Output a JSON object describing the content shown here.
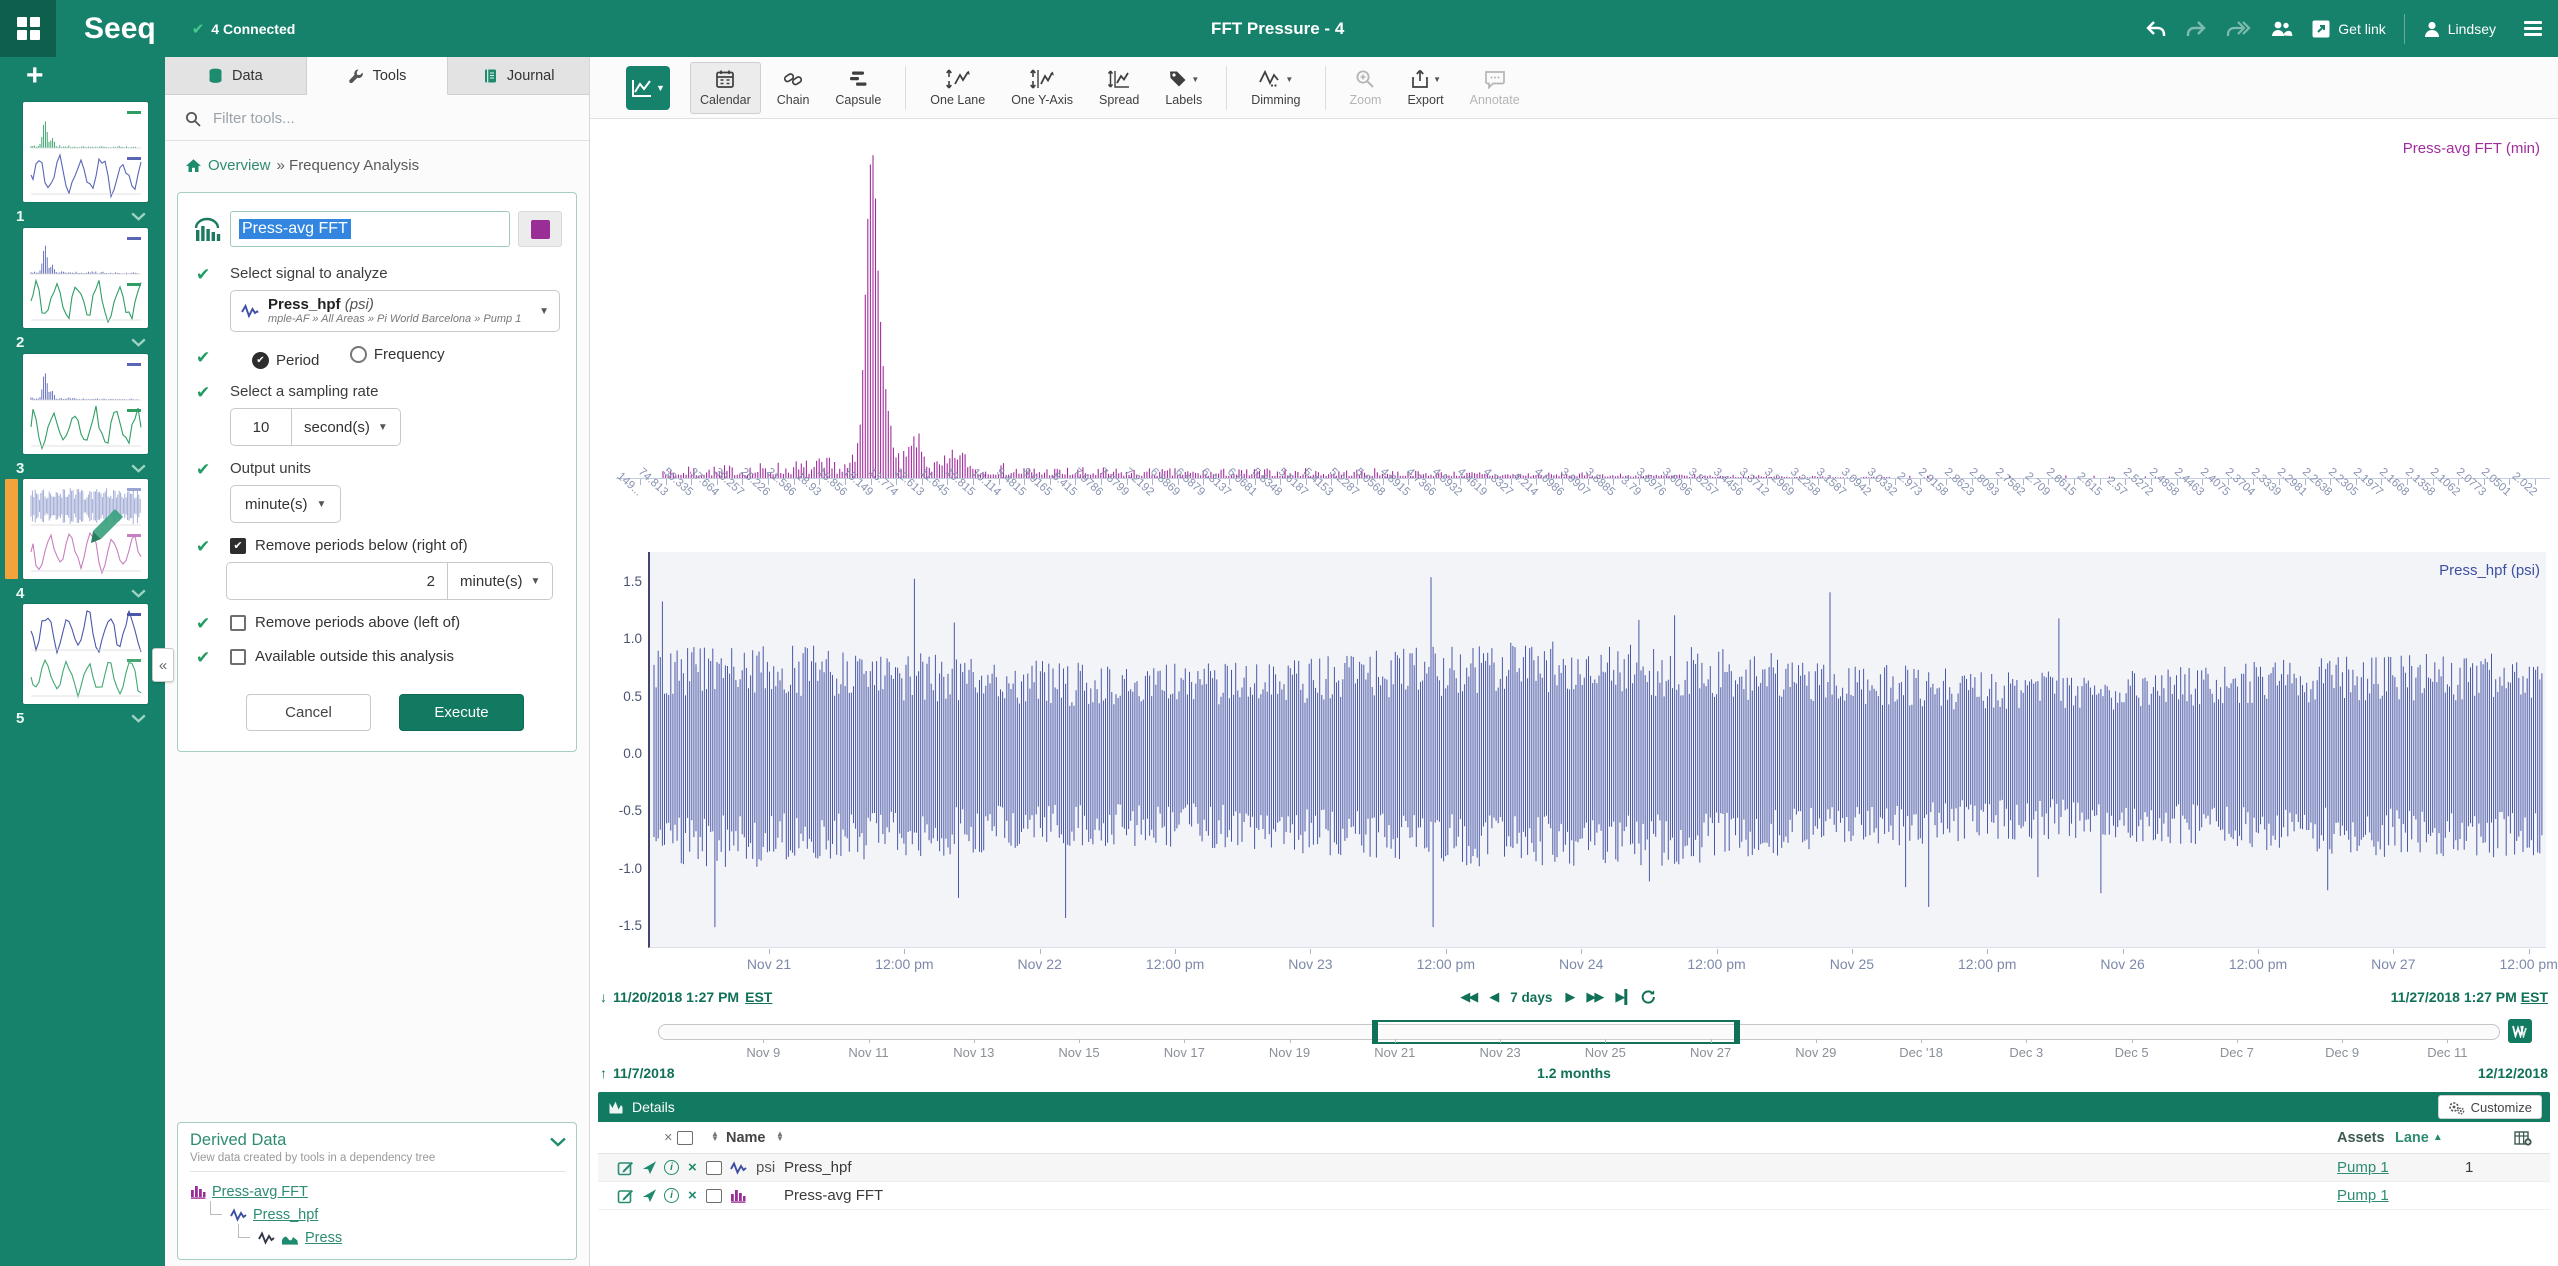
{
  "topbar": {
    "logo": "Seeq",
    "connected": "4 Connected",
    "title": "FFT Pressure - 4",
    "get_link": "Get link",
    "user": "Lindsey"
  },
  "sidebar": {
    "add_label": "+",
    "worksheets": [
      {
        "label": "1",
        "active": false,
        "edited": false,
        "top": {
          "kind": "fft",
          "color": "#2f9e63"
        },
        "bottom": {
          "kind": "wave",
          "color": "#5a66b5"
        }
      },
      {
        "label": "2",
        "active": false,
        "edited": false,
        "top": {
          "kind": "fft",
          "color": "#5a66b5"
        },
        "bottom": {
          "kind": "wave",
          "color": "#2f9e63"
        }
      },
      {
        "label": "3",
        "active": false,
        "edited": false,
        "top": {
          "kind": "fft",
          "color": "#5a66b5"
        },
        "bottom": {
          "kind": "wave",
          "color": "#2f9e63"
        }
      },
      {
        "label": "4",
        "active": true,
        "edited": true,
        "top": {
          "kind": "band",
          "color": "#9aa5d2"
        },
        "bottom": {
          "kind": "wave",
          "color": "#c77fc0"
        }
      },
      {
        "label": "5",
        "active": false,
        "edited": false,
        "top": {
          "kind": "wave",
          "color": "#4a57a9"
        },
        "bottom": {
          "kind": "wave",
          "color": "#43a873"
        }
      }
    ]
  },
  "tools_panel": {
    "tabs": [
      {
        "label": "Data"
      },
      {
        "label": "Tools",
        "active": true
      },
      {
        "label": "Journal"
      }
    ],
    "filter_placeholder": "Filter tools...",
    "breadcrumb": {
      "root": "Overview",
      "rest": "» Frequency Analysis"
    },
    "form": {
      "name_value": "Press-avg FFT",
      "swatch_color": "#9B2D96",
      "signal_label": "Select signal to analyze",
      "signal_name": "Press_hpf",
      "signal_unit": "(psi)",
      "signal_path": "mple-AF » All Areas » Pi World Barcelona » Pump 1",
      "radio_period": "Period",
      "radio_frequency": "Frequency",
      "period_selected": true,
      "sampling_label": "Select a sampling rate",
      "sampling_value": "10",
      "sampling_unit": "second(s)",
      "output_label": "Output units",
      "output_unit": "minute(s)",
      "below_label": "Remove periods below (right of)",
      "below_checked": true,
      "below_value": "2",
      "below_unit": "minute(s)",
      "above_label": "Remove periods above (left of)",
      "above_checked": false,
      "outside_label": "Available outside this analysis",
      "outside_checked": false,
      "cancel_label": "Cancel",
      "execute_label": "Execute"
    },
    "derived": {
      "title": "Derived Data",
      "subtitle": "View data created by tools in a dependency tree",
      "tree": [
        "Press-avg FFT",
        "Press_hpf",
        "Press"
      ]
    }
  },
  "toolbar": {
    "buttons": [
      {
        "label": "Calendar",
        "state": "active"
      },
      {
        "label": "Chain",
        "state": "normal"
      },
      {
        "label": "Capsule",
        "state": "normal"
      },
      {
        "label": "One Lane",
        "state": "normal"
      },
      {
        "label": "One Y-Axis",
        "state": "normal"
      },
      {
        "label": "Spread",
        "state": "normal"
      },
      {
        "label": "Labels",
        "state": "normal"
      },
      {
        "label": "Dimming",
        "state": "normal"
      },
      {
        "label": "Zoom",
        "state": "disabled"
      },
      {
        "label": "Export",
        "state": "normal"
      },
      {
        "label": "Annotate",
        "state": "disabled"
      }
    ]
  },
  "chart_data": [
    {
      "type": "bar",
      "name": "Press-avg FFT",
      "lane_label": "Press-avg FFT (min)",
      "color": "#A12D9D",
      "x_axis": "period in minutes, harmonic ticks T/k with T ≈ 151.5 min",
      "tick_labels": [
        "149...",
        "74.813",
        "50.335",
        "37.664",
        "30.257",
        "25.226",
        "21.586",
        "18.93",
        "16.856",
        "15.149",
        "13.774",
        "12.613",
        "11.645",
        "10.815",
        "10.114",
        "9.4815",
        "8.9165",
        "8.415",
        "7.9786",
        "7.5799",
        "7.2192",
        "6.8869",
        "6.5879",
        "6.3137",
        "6.0681",
        "5.8348",
        "5.6187",
        "5.4153",
        "5.2287",
        "5.0568",
        "4.8915",
        "4.7366",
        "4.5932",
        "4.4619",
        "4.3327",
        "4.214",
        "4.0986",
        "3.9907",
        "3.8885",
        "3.79",
        "3.6976",
        "3.6096",
        "3.5257",
        "3.4456",
        "3.3712",
        "3.2969",
        "3.2258",
        "3.1587",
        "3.0942",
        "3.0332",
        "2.973",
        "2.9158",
        "2.8623",
        "2.8093",
        "2.7582",
        "2.709",
        "2.6615",
        "2.615",
        "2.57",
        "2.5272",
        "2.4858",
        "2.4463",
        "2.4075",
        "2.3704",
        "2.3339",
        "2.2981",
        "2.2638",
        "2.2305",
        "2.1977",
        "2.1668",
        "2.1358",
        "2.1062",
        "2.0773",
        "2.0501",
        "2.022"
      ],
      "peak": {
        "tick_label": "15.149",
        "relative_height": 1.0,
        "note": "dominant spectral spike near the 15.1-minute period; low broadband noise floor that decays toward shorter periods and vanishes past ~2.4 min"
      }
    },
    {
      "type": "line",
      "name": "Press_hpf",
      "lane_label": "Press_hpf (psi)",
      "color": "#4A58A8",
      "y_ticks": [
        "1.5",
        "1.0",
        "0.5",
        "0.0",
        "-0.5",
        "-1.0",
        "-1.5"
      ],
      "ylim": [
        -1.6,
        1.75
      ],
      "x_tick_labels": [
        "Nov 21",
        "12:00 pm",
        "Nov 22",
        "12:00 pm",
        "Nov 23",
        "12:00 pm",
        "Nov 24",
        "12:00 pm",
        "Nov 25",
        "12:00 pm",
        "Nov 26",
        "12:00 pm",
        "Nov 27",
        "12:00 pm"
      ],
      "description": "high-pass-filtered pressure signal; dense zero-mean oscillation with typical envelope ±0.9 psi and occasional excursions to ±1.5 psi over 11/20/2018–11/27/2018"
    }
  ],
  "range": {
    "start": "11/20/2018 1:27 PM",
    "start_tz": "EST",
    "end": "11/27/2018 1:27 PM",
    "end_tz": "EST",
    "duration": "7 days",
    "invest_start": "11/7/2018",
    "invest_duration": "1.2 months",
    "invest_end": "12/12/2018",
    "scrubber_labels": [
      "Nov 9",
      "Nov 11",
      "Nov 13",
      "Nov 15",
      "Nov 17",
      "Nov 19",
      "Nov 21",
      "Nov 23",
      "Nov 25",
      "Nov 27",
      "Nov 29",
      "Dec '18",
      "Dec 3",
      "Dec 5",
      "Dec 7",
      "Dec 9",
      "Dec 11"
    ]
  },
  "details": {
    "title": "Details",
    "customize_label": "Customize",
    "columns": {
      "name": "Name",
      "assets": "Assets",
      "lane": "Lane"
    },
    "rows": [
      {
        "type": "signal",
        "unit": "psi",
        "name": "Press_hpf",
        "asset": "Pump 1",
        "lane": "1"
      },
      {
        "type": "fft",
        "unit": "",
        "name": "Press-avg FFT",
        "asset": "Pump 1",
        "lane": ""
      }
    ]
  }
}
